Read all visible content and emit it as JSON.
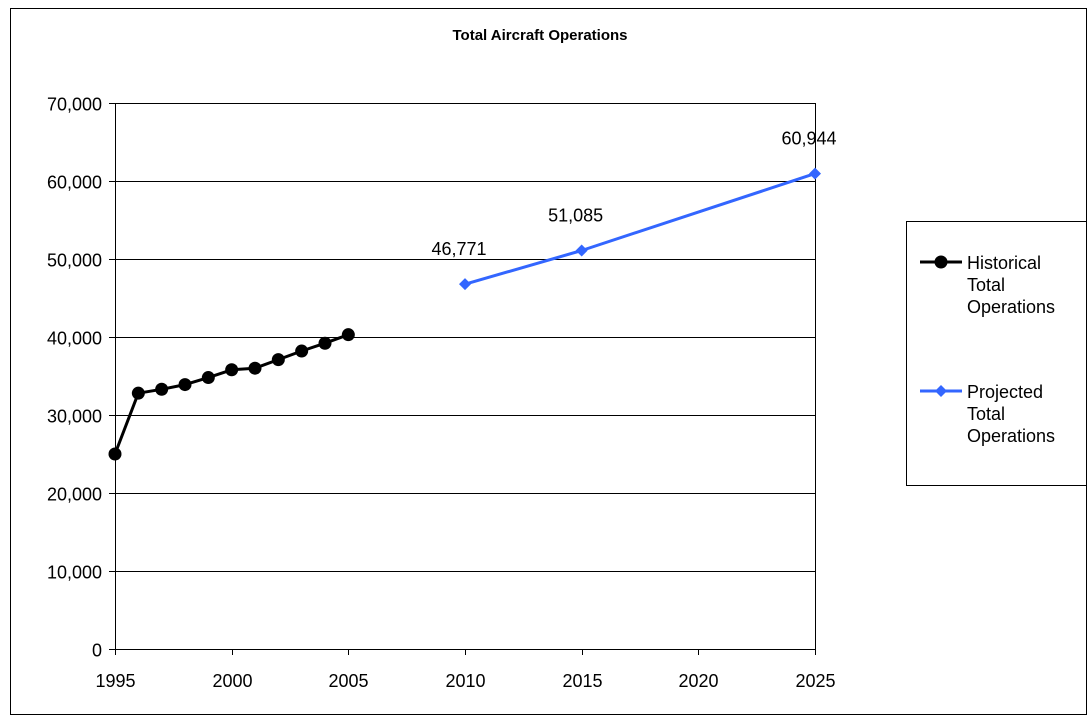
{
  "chart_data": {
    "type": "line",
    "title": "Total Aircraft Operations",
    "xlabel": "",
    "ylabel": "",
    "xlim": [
      1995,
      2025
    ],
    "ylim": [
      0,
      70000
    ],
    "x_ticks": [
      "1995",
      "2000",
      "2005",
      "2010",
      "2015",
      "2020",
      "2025"
    ],
    "y_ticks": [
      "0",
      "10,000",
      "20,000",
      "30,000",
      "40,000",
      "50,000",
      "60,000",
      "70,000"
    ],
    "grid": "horizontal",
    "legend_position": "right",
    "series": [
      {
        "name": "Historical Total Operations",
        "legend_lines": [
          "Historical",
          "Total",
          "Operations"
        ],
        "color": "#000000",
        "marker": "circle",
        "points": [
          {
            "x": 1995,
            "y": 25000
          },
          {
            "x": 1996,
            "y": 32800
          },
          {
            "x": 1997,
            "y": 33300
          },
          {
            "x": 1998,
            "y": 33900
          },
          {
            "x": 1999,
            "y": 34800
          },
          {
            "x": 2000,
            "y": 35800
          },
          {
            "x": 2001,
            "y": 36000
          },
          {
            "x": 2002,
            "y": 37100
          },
          {
            "x": 2003,
            "y": 38200
          },
          {
            "x": 2004,
            "y": 39200
          },
          {
            "x": 2005,
            "y": 40300
          }
        ]
      },
      {
        "name": "Projected Total Operations",
        "legend_lines": [
          "Projected",
          "Total",
          "Operations"
        ],
        "color": "#3366ff",
        "marker": "diamond",
        "points": [
          {
            "x": 2010,
            "y": 46771,
            "label": "46,771"
          },
          {
            "x": 2015,
            "y": 51085,
            "label": "51,085"
          },
          {
            "x": 2025,
            "y": 60944,
            "label": "60,944"
          }
        ]
      }
    ]
  }
}
